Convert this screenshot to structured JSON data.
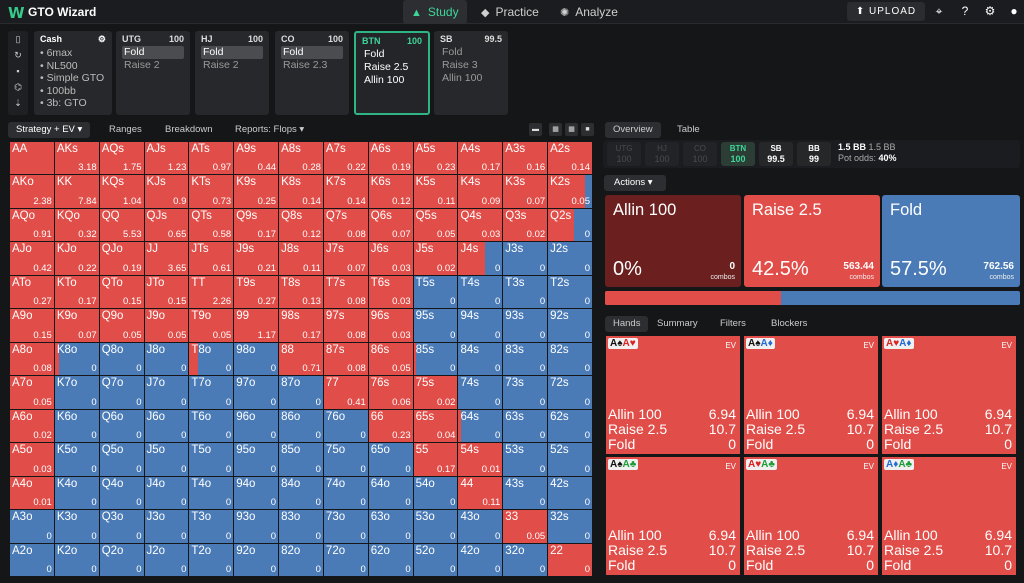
{
  "app": {
    "logo": "W",
    "title": "GTO Wizard",
    "nav": [
      {
        "label": "Study",
        "icon": "▲"
      },
      {
        "label": "Practice",
        "icon": "◆"
      },
      {
        "label": "Analyze",
        "icon": "✺"
      }
    ],
    "upload": "⬆ UPLOAD",
    "icons": [
      "⌖",
      "?",
      "⚙",
      "●"
    ]
  },
  "sidetools": [
    "▯",
    "↻",
    "▪",
    "⌬",
    "⇣"
  ],
  "cash": {
    "title": "Cash",
    "icon": "⚙",
    "lines": [
      "• 6max",
      "• NL500",
      "• Simple GTO",
      "• 100bb",
      "• 3b: GTO"
    ]
  },
  "positions": [
    {
      "name": "UTG",
      "stack": "100",
      "actions": [
        "Fold",
        "Raise 2"
      ],
      "selected": 0
    },
    {
      "name": "HJ",
      "stack": "100",
      "actions": [
        "Fold",
        "Raise 2"
      ],
      "selected": 0
    },
    {
      "name": "CO",
      "stack": "100",
      "actions": [
        "Fold",
        "Raise 2.3"
      ],
      "selected": 0
    },
    {
      "name": "BTN",
      "stack": "100",
      "actions": [
        "Fold",
        "Raise 2.5",
        "Allin 100"
      ],
      "selected": -1
    },
    {
      "name": "SB",
      "stack": "99.5",
      "actions": [
        "Fold",
        "Raise 3",
        "Allin 100"
      ],
      "selected": -1
    }
  ],
  "left_tabs": {
    "strategy": "Strategy + EV ▾",
    "ranges": "Ranges",
    "breakdown": "Breakdown",
    "reports": "Reports: Flops ▾"
  },
  "right_tabs": {
    "overview": "Overview",
    "table": "Table"
  },
  "pos_bar": [
    {
      "n": "UTG",
      "v": "100"
    },
    {
      "n": "HJ",
      "v": "100"
    },
    {
      "n": "CO",
      "v": "100"
    },
    {
      "n": "BTN",
      "v": "100"
    },
    {
      "n": "SB",
      "v": "99.5"
    },
    {
      "n": "BB",
      "v": "99"
    }
  ],
  "pot": {
    "bb": "1.5 BB",
    "bb2": "1.5 BB",
    "odds_label": "Pot odds:",
    "odds": "40%"
  },
  "actions_label": "Actions ▾",
  "actions": [
    {
      "title": "Allin 100",
      "pct": "0%",
      "combos": "0",
      "combos_label": "combos",
      "color": "#6b1f1f"
    },
    {
      "title": "Raise 2.5",
      "pct": "42.5%",
      "combos": "563.44",
      "combos_label": "combos",
      "color": "#e14d48"
    },
    {
      "title": "Fold",
      "pct": "57.5%",
      "combos": "762.56",
      "combos_label": "combos",
      "color": "#4a7bb7"
    }
  ],
  "freq_red": 0.425,
  "hand_tabs": [
    "Hands",
    "Summary",
    "Filters",
    "Blockers"
  ],
  "hand_cards": [
    {
      "c1": "A♠",
      "c2": "A♥",
      "k1": "",
      "k2": "r",
      "ev": "EV",
      "rows": [
        [
          "Allin 100",
          "6.94"
        ],
        [
          "Raise 2.5",
          "10.7"
        ],
        [
          "Fold",
          "0"
        ]
      ]
    },
    {
      "c1": "A♠",
      "c2": "A♦",
      "k1": "",
      "k2": "b",
      "ev": "EV",
      "rows": [
        [
          "Allin 100",
          "6.94"
        ],
        [
          "Raise 2.5",
          "10.7"
        ],
        [
          "Fold",
          "0"
        ]
      ]
    },
    {
      "c1": "A♥",
      "c2": "A♦",
      "k1": "r",
      "k2": "b",
      "ev": "EV",
      "rows": [
        [
          "Allin 100",
          "6.94"
        ],
        [
          "Raise 2.5",
          "10.7"
        ],
        [
          "Fold",
          "0"
        ]
      ]
    },
    {
      "c1": "A♠",
      "c2": "A♣",
      "k1": "",
      "k2": "g",
      "ev": "EV",
      "rows": [
        [
          "Allin 100",
          "6.94"
        ],
        [
          "Raise 2.5",
          "10.7"
        ],
        [
          "Fold",
          "0"
        ]
      ]
    },
    {
      "c1": "A♥",
      "c2": "A♣",
      "k1": "r",
      "k2": "g",
      "ev": "EV",
      "rows": [
        [
          "Allin 100",
          "6.94"
        ],
        [
          "Raise 2.5",
          "10.7"
        ],
        [
          "Fold",
          "0"
        ]
      ]
    },
    {
      "c1": "A♦",
      "c2": "A♣",
      "k1": "b",
      "k2": "g",
      "ev": "EV",
      "rows": [
        [
          "Allin 100",
          "6.94"
        ],
        [
          "Raise 2.5",
          "10.7"
        ],
        [
          "Fold",
          "0"
        ]
      ]
    }
  ],
  "matrix": [
    [
      [
        "AA",
        "1",
        ""
      ],
      [
        "AKs",
        "1",
        "3.18"
      ],
      [
        "AQs",
        "1",
        "1.75"
      ],
      [
        "AJs",
        "1",
        "1.23"
      ],
      [
        "ATs",
        "1",
        "0.97"
      ],
      [
        "A9s",
        "1",
        "0.44"
      ],
      [
        "A8s",
        "1",
        "0.28"
      ],
      [
        "A7s",
        "1",
        "0.22"
      ],
      [
        "A6s",
        "1",
        "0.19"
      ],
      [
        "A5s",
        "1",
        "0.23"
      ],
      [
        "A4s",
        "1",
        "0.17"
      ],
      [
        "A3s",
        "1",
        "0.16"
      ],
      [
        "A2s",
        "1",
        "0.14"
      ]
    ],
    [
      [
        "AKo",
        "1",
        "2.38"
      ],
      [
        "KK",
        "1",
        "7.84"
      ],
      [
        "KQs",
        "1",
        "1.04"
      ],
      [
        "KJs",
        "1",
        "0.9"
      ],
      [
        "KTs",
        "1",
        "0.73"
      ],
      [
        "K9s",
        "1",
        "0.25"
      ],
      [
        "K8s",
        "1",
        "0.14"
      ],
      [
        "K7s",
        "1",
        "0.14"
      ],
      [
        "K6s",
        "1",
        "0.12"
      ],
      [
        "K5s",
        "1",
        "0.11"
      ],
      [
        "K4s",
        "1",
        "0.09"
      ],
      [
        "K3s",
        "1",
        "0.07"
      ],
      [
        "K2s",
        "0.85",
        "0.05"
      ]
    ],
    [
      [
        "AQo",
        "1",
        "0.91"
      ],
      [
        "KQo",
        "1",
        "0.32"
      ],
      [
        "QQ",
        "1",
        "5.53"
      ],
      [
        "QJs",
        "1",
        "0.65"
      ],
      [
        "QTs",
        "1",
        "0.58"
      ],
      [
        "Q9s",
        "1",
        "0.17"
      ],
      [
        "Q8s",
        "1",
        "0.12"
      ],
      [
        "Q7s",
        "1",
        "0.08"
      ],
      [
        "Q6s",
        "1",
        "0.07"
      ],
      [
        "Q5s",
        "1",
        "0.05"
      ],
      [
        "Q4s",
        "1",
        "0.03"
      ],
      [
        "Q3s",
        "1",
        "0.02"
      ],
      [
        "Q2s",
        "0.6",
        "0"
      ]
    ],
    [
      [
        "AJo",
        "1",
        "0.42"
      ],
      [
        "KJo",
        "1",
        "0.22"
      ],
      [
        "QJo",
        "1",
        "0.19"
      ],
      [
        "JJ",
        "1",
        "3.65"
      ],
      [
        "JTs",
        "1",
        "0.61"
      ],
      [
        "J9s",
        "1",
        "0.21"
      ],
      [
        "J8s",
        "1",
        "0.11"
      ],
      [
        "J7s",
        "1",
        "0.07"
      ],
      [
        "J6s",
        "1",
        "0.03"
      ],
      [
        "J5s",
        "1",
        "0.02"
      ],
      [
        "J4s",
        "0.6",
        "0"
      ],
      [
        "J3s",
        "0",
        "0"
      ],
      [
        "J2s",
        "0",
        "0"
      ]
    ],
    [
      [
        "ATo",
        "1",
        "0.27"
      ],
      [
        "KTo",
        "1",
        "0.17"
      ],
      [
        "QTo",
        "1",
        "0.15"
      ],
      [
        "JTo",
        "1",
        "0.15"
      ],
      [
        "TT",
        "1",
        "2.26"
      ],
      [
        "T9s",
        "1",
        "0.27"
      ],
      [
        "T8s",
        "1",
        "0.13"
      ],
      [
        "T7s",
        "1",
        "0.08"
      ],
      [
        "T6s",
        "1",
        "0.03"
      ],
      [
        "T5s",
        "0",
        "0"
      ],
      [
        "T4s",
        "0",
        "0"
      ],
      [
        "T3s",
        "0",
        "0"
      ],
      [
        "T2s",
        "0",
        "0"
      ]
    ],
    [
      [
        "A9o",
        "1",
        "0.15"
      ],
      [
        "K9o",
        "1",
        "0.07"
      ],
      [
        "Q9o",
        "1",
        "0.05"
      ],
      [
        "J9o",
        "1",
        "0.05"
      ],
      [
        "T9o",
        "1",
        "0.05"
      ],
      [
        "99",
        "1",
        "1.17"
      ],
      [
        "98s",
        "1",
        "0.17"
      ],
      [
        "97s",
        "1",
        "0.08"
      ],
      [
        "96s",
        "1",
        "0.03"
      ],
      [
        "95s",
        "0",
        "0"
      ],
      [
        "94s",
        "0",
        "0"
      ],
      [
        "93s",
        "0",
        "0"
      ],
      [
        "92s",
        "0",
        "0"
      ]
    ],
    [
      [
        "A8o",
        "1",
        "0.08"
      ],
      [
        "K8o",
        "0.1",
        "0"
      ],
      [
        "Q8o",
        "0",
        "0"
      ],
      [
        "J8o",
        "0",
        "0"
      ],
      [
        "T8o",
        "0.2",
        "0"
      ],
      [
        "98o",
        "0",
        "0"
      ],
      [
        "88",
        "1",
        "0.71"
      ],
      [
        "87s",
        "1",
        "0.08"
      ],
      [
        "86s",
        "1",
        "0.05"
      ],
      [
        "85s",
        "0.05",
        "0"
      ],
      [
        "84s",
        "0",
        "0"
      ],
      [
        "83s",
        "0",
        "0"
      ],
      [
        "82s",
        "0",
        "0"
      ]
    ],
    [
      [
        "A7o",
        "1",
        "0.05"
      ],
      [
        "K7o",
        "0",
        "0"
      ],
      [
        "Q7o",
        "0",
        "0"
      ],
      [
        "J7o",
        "0",
        "0"
      ],
      [
        "T7o",
        "0",
        "0"
      ],
      [
        "97o",
        "0",
        "0"
      ],
      [
        "87o",
        "0",
        "0"
      ],
      [
        "77",
        "1",
        "0.41"
      ],
      [
        "76s",
        "1",
        "0.06"
      ],
      [
        "75s",
        "1",
        "0.02"
      ],
      [
        "74s",
        "0",
        "0"
      ],
      [
        "73s",
        "0",
        "0"
      ],
      [
        "72s",
        "0",
        "0"
      ]
    ],
    [
      [
        "A6o",
        "1",
        "0.02"
      ],
      [
        "K6o",
        "0",
        "0"
      ],
      [
        "Q6o",
        "0",
        "0"
      ],
      [
        "J6o",
        "0",
        "0"
      ],
      [
        "T6o",
        "0",
        "0"
      ],
      [
        "96o",
        "0",
        "0"
      ],
      [
        "86o",
        "0",
        "0"
      ],
      [
        "76o",
        "0",
        "0"
      ],
      [
        "66",
        "1",
        "0.23"
      ],
      [
        "65s",
        "1",
        "0.04"
      ],
      [
        "64s",
        "0.05",
        "0"
      ],
      [
        "63s",
        "0",
        "0"
      ],
      [
        "62s",
        "0",
        "0"
      ]
    ],
    [
      [
        "A5o",
        "1",
        "0.03"
      ],
      [
        "K5o",
        "0",
        "0"
      ],
      [
        "Q5o",
        "0",
        "0"
      ],
      [
        "J5o",
        "0",
        "0"
      ],
      [
        "T5o",
        "0",
        "0"
      ],
      [
        "95o",
        "0",
        "0"
      ],
      [
        "85o",
        "0",
        "0"
      ],
      [
        "75o",
        "0",
        "0"
      ],
      [
        "65o",
        "0",
        "0"
      ],
      [
        "55",
        "1",
        "0.17"
      ],
      [
        "54s",
        "1",
        "0.01"
      ],
      [
        "53s",
        "0",
        "0"
      ],
      [
        "52s",
        "0",
        "0"
      ]
    ],
    [
      [
        "A4o",
        "1",
        "0.01"
      ],
      [
        "K4o",
        "0",
        "0"
      ],
      [
        "Q4o",
        "0",
        "0"
      ],
      [
        "J4o",
        "0",
        "0"
      ],
      [
        "T4o",
        "0",
        "0"
      ],
      [
        "94o",
        "0",
        "0"
      ],
      [
        "84o",
        "0",
        "0"
      ],
      [
        "74o",
        "0",
        "0"
      ],
      [
        "64o",
        "0",
        "0"
      ],
      [
        "54o",
        "0",
        "0"
      ],
      [
        "44",
        "1",
        "0.11"
      ],
      [
        "43s",
        "0",
        "0"
      ],
      [
        "42s",
        "0",
        "0"
      ]
    ],
    [
      [
        "A3o",
        "0",
        "0"
      ],
      [
        "K3o",
        "0",
        "0"
      ],
      [
        "Q3o",
        "0",
        "0"
      ],
      [
        "J3o",
        "0",
        "0"
      ],
      [
        "T3o",
        "0",
        "0"
      ],
      [
        "93o",
        "0",
        "0"
      ],
      [
        "83o",
        "0",
        "0"
      ],
      [
        "73o",
        "0",
        "0"
      ],
      [
        "63o",
        "0",
        "0"
      ],
      [
        "53o",
        "0",
        "0"
      ],
      [
        "43o",
        "0",
        "0"
      ],
      [
        "33",
        "1",
        "0.05"
      ],
      [
        "32s",
        "0",
        "0"
      ]
    ],
    [
      [
        "A2o",
        "0",
        "0"
      ],
      [
        "K2o",
        "0",
        "0"
      ],
      [
        "Q2o",
        "0",
        "0"
      ],
      [
        "J2o",
        "0",
        "0"
      ],
      [
        "T2o",
        "0",
        "0"
      ],
      [
        "92o",
        "0",
        "0"
      ],
      [
        "82o",
        "0",
        "0"
      ],
      [
        "72o",
        "0",
        "0"
      ],
      [
        "62o",
        "0",
        "0"
      ],
      [
        "52o",
        "0",
        "0"
      ],
      [
        "42o",
        "0",
        "0"
      ],
      [
        "32o",
        "0",
        "0"
      ],
      [
        "22",
        "1",
        "0"
      ]
    ]
  ]
}
